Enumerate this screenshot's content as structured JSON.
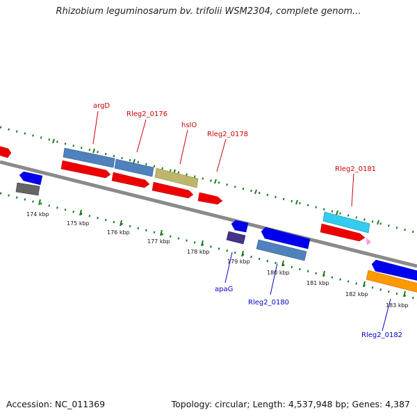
{
  "title": "Rhizobium leguminosarum bv. trifolii WSM2304, complete genom...",
  "footer": {
    "accession": "Accession: NC_011369",
    "summary": "Topology: circular; Length: 4,537,948 bp; Genes: 4,387"
  },
  "colors": {
    "label_plus": "#cc0000",
    "label_minus": "#0000cc",
    "tick_green": "#1a7a1a",
    "backbone": "#8a8a8a"
  },
  "kbp_labels": [
    "174 kbp",
    "175 kbp",
    "176 kbp",
    "177 kbp",
    "178 kbp",
    "179 kbp",
    "180 kbp",
    "181 kbp",
    "182 kbp",
    "183 kbp"
  ],
  "gene_labels": [
    {
      "text": "argD",
      "strand": "plus"
    },
    {
      "text": "Rleg2_0176",
      "strand": "plus"
    },
    {
      "text": "hslO",
      "strand": "plus"
    },
    {
      "text": "Rleg2_0178",
      "strand": "plus"
    },
    {
      "text": "Rleg2_0181",
      "strand": "plus"
    },
    {
      "text": "apaG",
      "strand": "minus"
    },
    {
      "text": "Rleg2_0180",
      "strand": "minus"
    },
    {
      "text": "Rleg2_0182",
      "strand": "minus"
    }
  ]
}
